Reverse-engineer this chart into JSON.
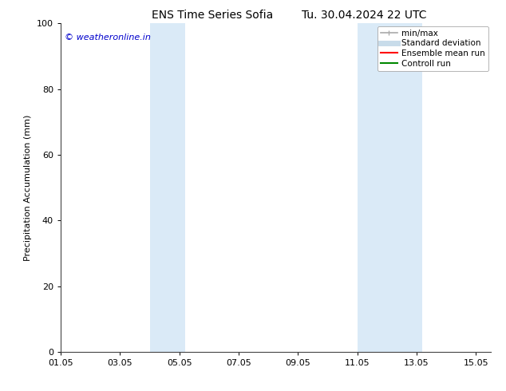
{
  "title_left": "ENS Time Series Sofia",
  "title_right": "Tu. 30.04.2024 22 UTC",
  "ylabel": "Precipitation Accumulation (mm)",
  "ylim": [
    0,
    100
  ],
  "yticks": [
    0,
    20,
    40,
    60,
    80,
    100
  ],
  "watermark": "© weatheronline.in",
  "watermark_color": "#0000cc",
  "background_color": "#ffffff",
  "plot_bg_color": "#ffffff",
  "shaded_bands": [
    {
      "xmin": 4.0,
      "xmax": 5.2,
      "color": "#daeaf7"
    },
    {
      "xmin": 11.0,
      "xmax": 13.2,
      "color": "#daeaf7"
    }
  ],
  "xtick_labels": [
    "01.05",
    "03.05",
    "05.05",
    "07.05",
    "09.05",
    "11.05",
    "13.05",
    "15.05"
  ],
  "xtick_positions": [
    1,
    3,
    5,
    7,
    9,
    11,
    13,
    15
  ],
  "xlim": [
    1,
    15.5
  ],
  "legend_items": [
    {
      "label": "min/max",
      "color": "#aaaaaa",
      "lw": 1.2,
      "style": "caps"
    },
    {
      "label": "Standard deviation",
      "color": "#c8dcea",
      "lw": 5,
      "style": "solid"
    },
    {
      "label": "Ensemble mean run",
      "color": "#ff0000",
      "lw": 1.5,
      "style": "solid"
    },
    {
      "label": "Controll run",
      "color": "#008800",
      "lw": 1.5,
      "style": "solid"
    }
  ],
  "title_fontsize": 10,
  "axis_fontsize": 8,
  "tick_fontsize": 8,
  "legend_fontsize": 7.5,
  "watermark_fontsize": 8
}
